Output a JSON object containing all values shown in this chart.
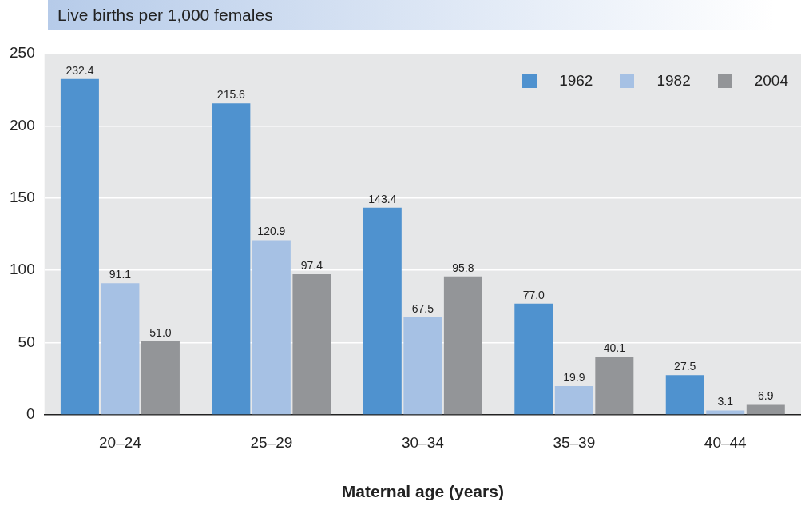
{
  "chart_data": {
    "type": "bar",
    "ylabel": "Live births per 1,000 females",
    "xlabel": "Maternal age (years)",
    "categories": [
      "20–24",
      "25–29",
      "30–34",
      "35–39",
      "40–44"
    ],
    "series": [
      {
        "name": "1962",
        "color": "#4f92cf",
        "values": [
          232.4,
          215.6,
          143.4,
          77.0,
          27.5
        ]
      },
      {
        "name": "1982",
        "color": "#a6c1e4",
        "values": [
          91.1,
          120.9,
          67.5,
          19.9,
          3.1
        ]
      },
      {
        "name": "2004",
        "color": "#939598",
        "values": [
          51.0,
          97.4,
          95.8,
          40.1,
          6.9
        ]
      }
    ],
    "value_labels": [
      [
        "232.4",
        "215.6",
        "143.4",
        "77.0",
        "27.5"
      ],
      [
        "91.1",
        "120.9",
        "67.5",
        "19.9",
        "3.1"
      ],
      [
        "51.0",
        "97.4",
        "95.8",
        "40.1",
        "6.9"
      ]
    ],
    "ylim": [
      0,
      250
    ],
    "yticks": [
      0,
      50,
      100,
      150,
      200,
      250
    ],
    "grid": "y",
    "legend": "top right"
  }
}
